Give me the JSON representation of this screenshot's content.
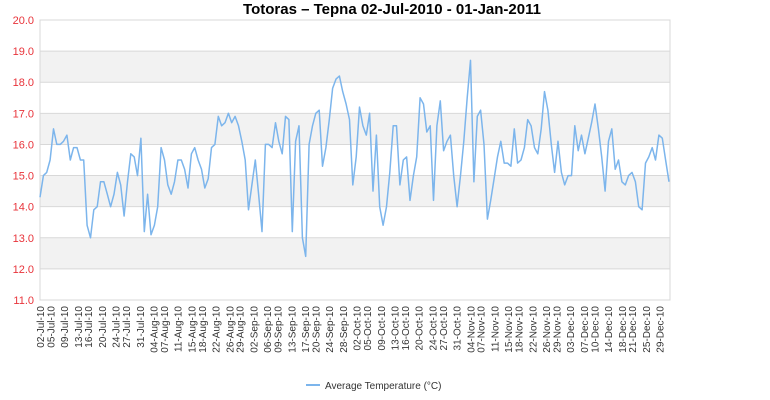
{
  "chart_data": {
    "type": "line",
    "title": "Totoras – Tepna  02-Jul-2010 - 01-Jan-2011",
    "xlabel": "",
    "ylabel": "",
    "ylim": [
      11.0,
      20.0
    ],
    "yticks": [
      "11.0",
      "12.0",
      "13.0",
      "14.0",
      "15.0",
      "16.0",
      "17.0",
      "18.0",
      "19.0",
      "20.0"
    ],
    "grid": true,
    "legend_position": "bottom-center",
    "x_start": "02-Jul-10",
    "x_end": "01-Jan-11",
    "xtick_labels": [
      "02-Jul-10",
      "05-Jul-10",
      "09-Jul-10",
      "13-Jul-10",
      "16-Jul-10",
      "20-Jul-10",
      "24-Jul-10",
      "27-Jul-10",
      "31-Jul-10",
      "04-Aug-10",
      "07-Aug-10",
      "11-Aug-10",
      "15-Aug-10",
      "18-Aug-10",
      "22-Aug-10",
      "26-Aug-10",
      "29-Aug-10",
      "02-Sep-10",
      "06-Sep-10",
      "09-Sep-10",
      "13-Sep-10",
      "17-Sep-10",
      "20-Sep-10",
      "24-Sep-10",
      "28-Sep-10",
      "02-Oct-10",
      "05-Oct-10",
      "09-Oct-10",
      "13-Oct-10",
      "16-Oct-10",
      "20-Oct-10",
      "24-Oct-10",
      "27-Oct-10",
      "31-Oct-10",
      "04-Nov-10",
      "07-Nov-10",
      "11-Nov-10",
      "15-Nov-10",
      "18-Nov-10",
      "22-Nov-10",
      "26-Nov-10",
      "29-Nov-10",
      "03-Dec-10",
      "07-Dec-10",
      "10-Dec-10",
      "14-Dec-10",
      "18-Dec-10",
      "21-Dec-10",
      "25-Dec-10",
      "29-Dec-10"
    ],
    "series": [
      {
        "name": "Average Temperature (°C)",
        "color": "#7cb5ec",
        "values": [
          14.3,
          15.0,
          15.1,
          15.5,
          16.5,
          16.0,
          16.0,
          16.1,
          16.3,
          15.5,
          15.9,
          15.9,
          15.5,
          15.5,
          13.4,
          13.0,
          13.9,
          14.0,
          14.8,
          14.8,
          14.4,
          14.0,
          14.4,
          15.1,
          14.7,
          13.7,
          14.8,
          15.7,
          15.6,
          15.0,
          16.2,
          13.2,
          14.4,
          13.1,
          13.4,
          14.0,
          15.9,
          15.5,
          14.7,
          14.4,
          14.8,
          15.5,
          15.5,
          15.2,
          14.6,
          15.7,
          15.9,
          15.5,
          15.2,
          14.6,
          14.9,
          15.9,
          16.0,
          16.9,
          16.6,
          16.7,
          17.0,
          16.7,
          16.9,
          16.6,
          16.1,
          15.5,
          13.9,
          14.7,
          15.5,
          14.4,
          13.2,
          16.0,
          16.0,
          15.9,
          16.7,
          16.1,
          15.7,
          16.9,
          16.8,
          13.2,
          16.1,
          16.6,
          13.0,
          12.4,
          16.0,
          16.6,
          17.0,
          17.1,
          15.3,
          15.9,
          16.8,
          17.8,
          18.1,
          18.2,
          17.7,
          17.3,
          16.8,
          14.7,
          15.6,
          17.2,
          16.6,
          16.3,
          17.0,
          14.5,
          16.3,
          14.0,
          13.4,
          14.0,
          15.1,
          16.6,
          16.6,
          14.7,
          15.5,
          15.6,
          14.2,
          15.0,
          15.6,
          17.5,
          17.3,
          16.4,
          16.6,
          14.2,
          16.6,
          17.4,
          15.8,
          16.1,
          16.3,
          15.0,
          14.0,
          15.0,
          16.1,
          17.5,
          18.7,
          14.8,
          16.9,
          17.1,
          16.0,
          13.6,
          14.2,
          14.9,
          15.6,
          16.1,
          15.4,
          15.4,
          15.3,
          16.5,
          15.4,
          15.5,
          15.9,
          16.8,
          16.6,
          15.9,
          15.7,
          16.5,
          17.7,
          17.1,
          16.0,
          15.1,
          16.1,
          15.1,
          14.7,
          15.0,
          15.0,
          16.6,
          15.8,
          16.3,
          15.7,
          16.2,
          16.7,
          17.3,
          16.5,
          15.6,
          14.5,
          16.1,
          16.5,
          15.2,
          15.5,
          14.8,
          14.7,
          15.0,
          15.1,
          14.8,
          14.0,
          13.9,
          15.4,
          15.6,
          15.9,
          15.5,
          16.3,
          16.2,
          15.5,
          14.8
        ]
      }
    ]
  }
}
